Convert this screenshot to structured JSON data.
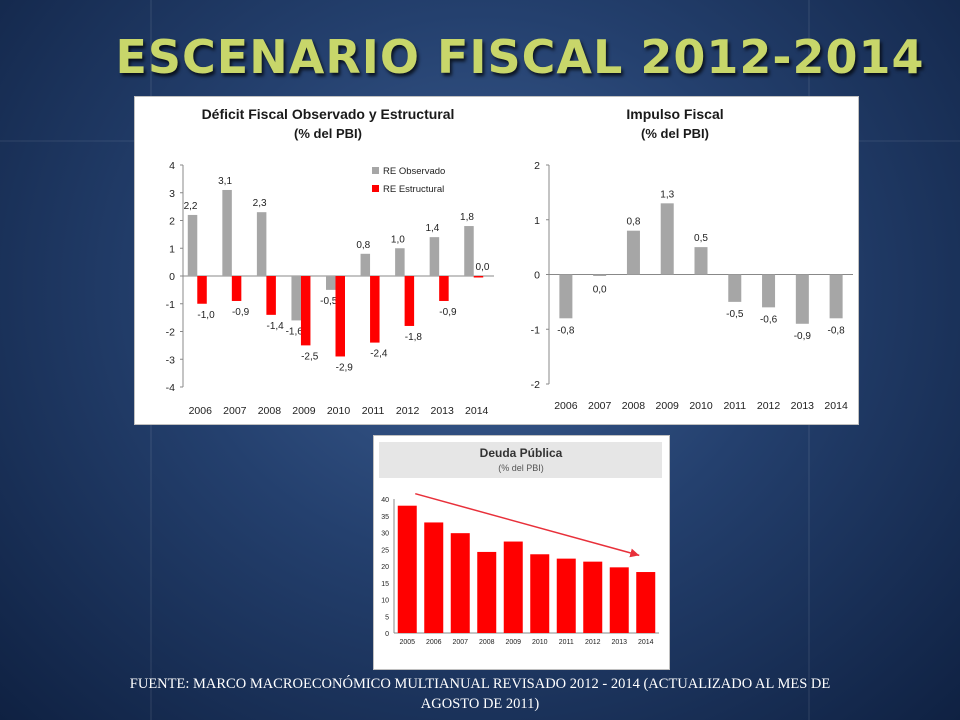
{
  "slide": {
    "title": "ESCENARIO FISCAL 2012-2014",
    "source_line1": "FUENTE: MARCO MACROECONÓMICO MULTIANUAL REVISADO 2012 - 2014 (ACTUALIZADO AL MES DE",
    "source_line2": "AGOSTO DE 2011)"
  },
  "chart_data": [
    {
      "id": "deficit",
      "type": "bar",
      "title": "Déficit Fiscal Observado y Estructural",
      "subtitle": "(% del PBI)",
      "categories": [
        "2006",
        "2007",
        "2008",
        "2009",
        "2010",
        "2011",
        "2012",
        "2013",
        "2014"
      ],
      "series": [
        {
          "name": "RE Observado",
          "color": "#a6a6a6",
          "values": [
            2.2,
            3.1,
            2.3,
            -1.6,
            -0.5,
            0.8,
            1.0,
            1.4,
            1.8
          ]
        },
        {
          "name": "RE Estructural",
          "color": "#ff0000",
          "values": [
            -1.0,
            -0.9,
            -1.4,
            -2.5,
            -2.9,
            -2.4,
            -1.8,
            -0.9,
            0.0
          ]
        }
      ],
      "data_labels": [
        [
          "2,2",
          "3,1",
          "2,3",
          "-1,6",
          "-0,5",
          "0,8",
          "1,0",
          "1,4",
          "1,8"
        ],
        [
          "-1,0",
          "-0,9",
          "-1,4",
          "-2,5",
          "-2,9",
          "-2,4",
          "-1,8",
          "-0,9",
          "0,0"
        ]
      ],
      "ylim": [
        -4,
        4
      ],
      "yticks": [
        "4",
        "3",
        "2",
        "1",
        "0",
        "-1",
        "-2",
        "-3",
        "-4"
      ],
      "legend": "top-center",
      "grid": false
    },
    {
      "id": "impulso",
      "type": "bar",
      "title": "Impulso Fiscal",
      "subtitle": "(% del PBI)",
      "categories": [
        "2006",
        "2007",
        "2008",
        "2009",
        "2010",
        "2011",
        "2012",
        "2013",
        "2014"
      ],
      "values": [
        -0.8,
        0.0,
        0.8,
        1.3,
        0.5,
        -0.5,
        -0.6,
        -0.9,
        -0.8
      ],
      "data_labels": [
        "-0,8",
        "0,0",
        "0,8",
        "1,3",
        "0,5",
        "-0,5",
        "-0,6",
        "-0,9",
        "-0,8"
      ],
      "color": "#a6a6a6",
      "ylim": [
        -2,
        2
      ],
      "yticks": [
        "2",
        "1",
        "0",
        "-1",
        "-2"
      ],
      "grid": false
    },
    {
      "id": "deuda",
      "type": "bar",
      "title": "Deuda Pública",
      "subtitle": "(% del PBI)",
      "categories": [
        "2005",
        "2006",
        "2007",
        "2008",
        "2009",
        "2010",
        "2011",
        "2012",
        "2013",
        "2014"
      ],
      "values": [
        38,
        33,
        29.8,
        24.2,
        27.3,
        23.5,
        22.2,
        21.3,
        19.6,
        18.2
      ],
      "color": "#ff0000",
      "ylim": [
        0,
        40
      ],
      "yticks": [
        "40",
        "35",
        "30",
        "25",
        "20",
        "15",
        "10",
        "5",
        "0"
      ],
      "trend_arrow": "downward",
      "trend_color": "#e8303a",
      "grid": false
    }
  ]
}
